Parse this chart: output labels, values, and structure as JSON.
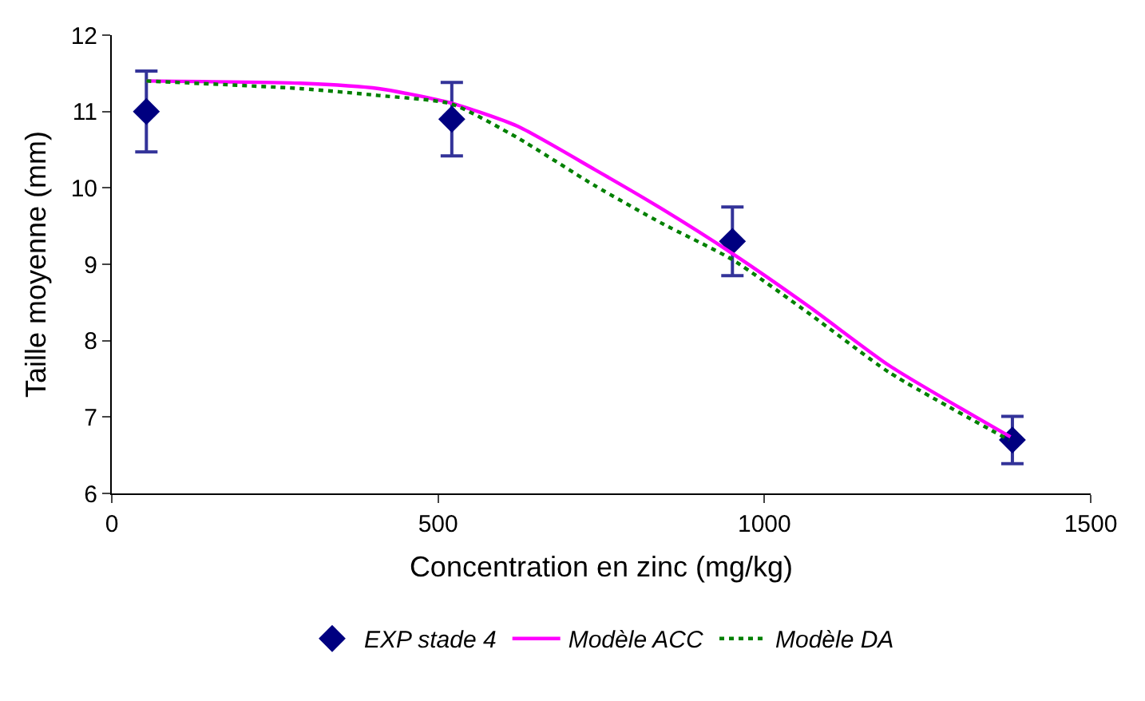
{
  "chart_data": {
    "type": "scatter",
    "xlabel": "Concentration en zinc (mg/kg)",
    "ylabel": "Taille moyenne (mm)",
    "xlim": [
      0,
      1500
    ],
    "xticks": [
      0,
      500,
      1000,
      1500
    ],
    "ylim": [
      6,
      12
    ],
    "yticks": [
      6,
      7,
      8,
      9,
      10,
      11,
      12
    ],
    "grid": false,
    "legend": "bottom",
    "series": [
      {
        "name": "EXP stade 4",
        "marker": "diamond",
        "color": "#000080",
        "x": [
          53,
          521,
          951,
          1380
        ],
        "values": [
          11.0,
          10.9,
          9.3,
          6.7
        ],
        "errors": [
          0.53,
          0.48,
          0.45,
          0.31
        ]
      },
      {
        "name": "Modèle ACC",
        "type": "line",
        "line_style": "solid",
        "color": "#ff00ff",
        "x": [
          53,
          289,
          409,
          520,
          621,
          740,
          842,
          951,
          1071,
          1192,
          1377
        ],
        "values": [
          11.4,
          11.37,
          11.3,
          11.11,
          10.81,
          10.24,
          9.73,
          9.14,
          8.43,
          7.67,
          6.74
        ]
      },
      {
        "name": "Modèle DA",
        "type": "line",
        "line_style": "dotted",
        "color": "#008000",
        "x": [
          53,
          289,
          409,
          520,
          621,
          740,
          842,
          951,
          1071,
          1192,
          1375
        ],
        "values": [
          11.4,
          11.3,
          11.21,
          11.1,
          10.66,
          10.03,
          9.54,
          9.06,
          8.34,
          7.58,
          6.7
        ]
      }
    ]
  }
}
